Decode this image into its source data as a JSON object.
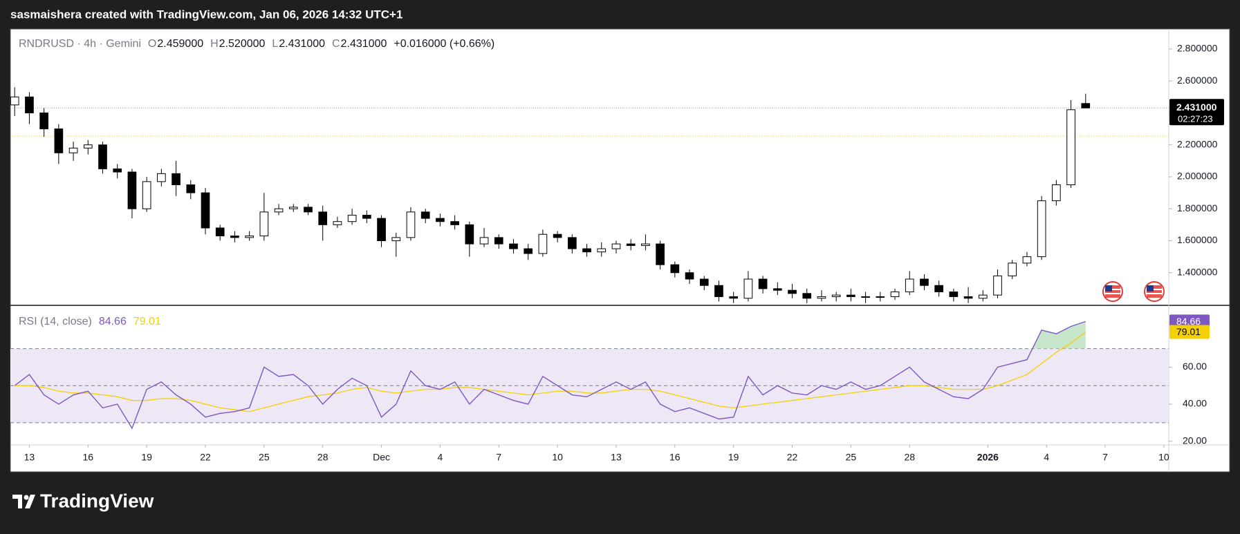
{
  "header": {
    "attribution": "sasmaishera created with TradingView.com, Jan 06, 2026 14:32 UTC+1"
  },
  "footer": {
    "brand": "TradingView"
  },
  "chart_data": {
    "type": "candlestick",
    "legend": {
      "symbol": "RNDRUSD · 4h · Gemini",
      "items": [
        {
          "key": "O",
          "value": "2.459000"
        },
        {
          "key": "H",
          "value": "2.520000"
        },
        {
          "key": "L",
          "value": "2.431000"
        },
        {
          "key": "C",
          "value": "2.431000"
        }
      ],
      "change": "+0.016000 (+0.66%)"
    },
    "x": [
      -0.75,
      0,
      0.75,
      1.5,
      2.25,
      3,
      3.75,
      4.5,
      5.25,
      6,
      6.75,
      7.5,
      8.25,
      9,
      9.75,
      10.5,
      11.25,
      12,
      12.75,
      13.5,
      14.25,
      15,
      15.75,
      16.5,
      17.25,
      18,
      18.75,
      19.5,
      20.25,
      21,
      21.75,
      22.5,
      23.25,
      24,
      24.75,
      25.5,
      26.25,
      27,
      27.75,
      28.5,
      29.25,
      30,
      30.75,
      31.5,
      32.25,
      33,
      33.75,
      34.5,
      35.25,
      36,
      36.75,
      37.5,
      38.25,
      39,
      39.75,
      40.5,
      41.25,
      42,
      42.75,
      43.5,
      44.25,
      45,
      45.75,
      46.5,
      47.25,
      48,
      48.75,
      49.5,
      50.25,
      51,
      51.75,
      52.5,
      53.25,
      54
    ],
    "open": [
      2.45,
      2.5,
      2.4,
      2.3,
      2.15,
      2.18,
      2.2,
      2.05,
      2.03,
      1.8,
      1.97,
      2.02,
      1.95,
      1.9,
      1.68,
      1.63,
      1.62,
      1.63,
      1.78,
      1.8,
      1.81,
      1.78,
      1.7,
      1.72,
      1.76,
      1.74,
      1.6,
      1.62,
      1.78,
      1.74,
      1.72,
      1.7,
      1.58,
      1.62,
      1.58,
      1.55,
      1.52,
      1.64,
      1.62,
      1.55,
      1.53,
      1.55,
      1.58,
      1.57,
      1.58,
      1.45,
      1.4,
      1.36,
      1.32,
      1.25,
      1.24,
      1.36,
      1.3,
      1.29,
      1.27,
      1.24,
      1.25,
      1.26,
      1.25,
      1.25,
      1.25,
      1.28,
      1.36,
      1.32,
      1.28,
      1.25,
      1.24,
      1.26,
      1.38,
      1.46,
      1.5,
      1.85,
      1.95,
      2.459
    ],
    "high": [
      2.56,
      2.53,
      2.43,
      2.33,
      2.22,
      2.23,
      2.22,
      2.08,
      2.05,
      2.0,
      2.05,
      2.1,
      1.98,
      1.93,
      1.7,
      1.66,
      1.66,
      1.9,
      1.83,
      1.83,
      1.83,
      1.82,
      1.75,
      1.8,
      1.79,
      1.76,
      1.65,
      1.81,
      1.8,
      1.77,
      1.76,
      1.72,
      1.68,
      1.64,
      1.61,
      1.58,
      1.67,
      1.66,
      1.64,
      1.58,
      1.59,
      1.6,
      1.61,
      1.64,
      1.6,
      1.47,
      1.42,
      1.38,
      1.35,
      1.28,
      1.41,
      1.38,
      1.34,
      1.33,
      1.3,
      1.29,
      1.28,
      1.3,
      1.28,
      1.28,
      1.3,
      1.41,
      1.39,
      1.35,
      1.3,
      1.31,
      1.29,
      1.42,
      1.48,
      1.53,
      1.88,
      1.98,
      2.48,
      2.52
    ],
    "low": [
      2.38,
      2.33,
      2.25,
      2.08,
      2.1,
      2.14,
      2.02,
      1.99,
      1.74,
      1.78,
      1.94,
      1.88,
      1.86,
      1.64,
      1.6,
      1.59,
      1.6,
      1.6,
      1.76,
      1.78,
      1.76,
      1.6,
      1.68,
      1.7,
      1.71,
      1.56,
      1.5,
      1.6,
      1.71,
      1.69,
      1.67,
      1.5,
      1.56,
      1.55,
      1.52,
      1.48,
      1.5,
      1.59,
      1.52,
      1.5,
      1.5,
      1.52,
      1.54,
      1.54,
      1.42,
      1.37,
      1.33,
      1.29,
      1.22,
      1.21,
      1.22,
      1.27,
      1.26,
      1.24,
      1.21,
      1.22,
      1.22,
      1.22,
      1.21,
      1.22,
      1.23,
      1.26,
      1.29,
      1.25,
      1.22,
      1.21,
      1.22,
      1.24,
      1.36,
      1.44,
      1.48,
      1.82,
      1.93,
      2.431
    ],
    "close": [
      2.5,
      2.4,
      2.3,
      2.15,
      2.18,
      2.2,
      2.05,
      2.03,
      1.8,
      1.97,
      2.02,
      1.95,
      1.9,
      1.68,
      1.63,
      1.62,
      1.63,
      1.78,
      1.8,
      1.81,
      1.78,
      1.7,
      1.72,
      1.76,
      1.74,
      1.6,
      1.62,
      1.78,
      1.74,
      1.72,
      1.7,
      1.58,
      1.62,
      1.58,
      1.55,
      1.52,
      1.64,
      1.62,
      1.55,
      1.53,
      1.55,
      1.58,
      1.57,
      1.58,
      1.45,
      1.4,
      1.36,
      1.32,
      1.25,
      1.24,
      1.36,
      1.3,
      1.29,
      1.27,
      1.24,
      1.25,
      1.26,
      1.25,
      1.25,
      1.25,
      1.28,
      1.36,
      1.32,
      1.28,
      1.25,
      1.24,
      1.26,
      1.38,
      1.46,
      1.5,
      1.85,
      1.95,
      2.42,
      2.431
    ],
    "up_color": "#ffffff",
    "down_color": "#000000",
    "wick_color": "#000000",
    "xlim": [
      -0.97,
      58.25
    ],
    "xticks": [
      {
        "value": 0,
        "label": "13"
      },
      {
        "value": 3,
        "label": "16"
      },
      {
        "value": 6,
        "label": "19"
      },
      {
        "value": 9,
        "label": "22"
      },
      {
        "value": 12,
        "label": "25"
      },
      {
        "value": 15,
        "label": "28"
      },
      {
        "value": 18,
        "label": "Dec"
      },
      {
        "value": 21,
        "label": "4"
      },
      {
        "value": 24,
        "label": "7"
      },
      {
        "value": 27,
        "label": "10"
      },
      {
        "value": 30,
        "label": "13"
      },
      {
        "value": 33,
        "label": "16"
      },
      {
        "value": 36,
        "label": "19"
      },
      {
        "value": 39,
        "label": "22"
      },
      {
        "value": 42,
        "label": "25"
      },
      {
        "value": 45,
        "label": "28"
      },
      {
        "value": 49,
        "label": "2026",
        "bold": true
      },
      {
        "value": 52,
        "label": "4"
      },
      {
        "value": 55,
        "label": "7"
      },
      {
        "value": 58,
        "label": "10"
      }
    ],
    "ylim": [
      1.2,
      2.925
    ],
    "yticks": [
      {
        "value": 1.4,
        "label": "1.400000"
      },
      {
        "value": 1.6,
        "label": "1.600000"
      },
      {
        "value": 1.8,
        "label": "1.800000"
      },
      {
        "value": 2.0,
        "label": "2.000000"
      },
      {
        "value": 2.2,
        "label": "2.200000"
      },
      {
        "value": 2.4,
        "label": "2.400000"
      },
      {
        "value": 2.6,
        "label": "2.600000"
      },
      {
        "value": 2.8,
        "label": "2.800000"
      }
    ],
    "price_tag": {
      "value": 2.431,
      "label": "2.431000",
      "countdown": "02:27:23"
    },
    "reference_line": {
      "value": 2.255,
      "color": "#f5d000"
    },
    "rsi": {
      "title": "RSI (14, close)",
      "color": "#7e57c2",
      "ma_color": "#f5d000",
      "values": [
        50,
        56,
        45,
        40,
        45,
        47,
        38,
        40,
        27,
        48,
        52,
        45,
        40,
        33,
        35,
        36,
        38,
        60,
        55,
        56,
        50,
        40,
        48,
        54,
        50,
        33,
        40,
        58,
        50,
        48,
        52,
        40,
        48,
        45,
        42,
        40,
        55,
        50,
        45,
        44,
        48,
        52,
        48,
        52,
        40,
        36,
        38,
        35,
        32,
        33,
        55,
        45,
        50,
        46,
        45,
        50,
        48,
        52,
        48,
        50,
        55,
        60,
        52,
        48,
        44,
        43,
        48,
        60,
        62,
        64,
        80,
        78,
        82,
        84.66
      ],
      "ma_values": [
        50,
        50,
        49,
        47,
        46,
        46,
        45,
        44,
        42,
        42,
        43,
        43,
        42,
        40,
        38,
        37,
        36,
        38,
        40,
        42,
        44,
        45,
        46,
        48,
        49,
        47,
        46,
        47,
        48,
        48,
        49,
        49,
        48,
        47,
        46,
        45,
        46,
        47,
        47,
        46,
        46,
        47,
        48,
        48,
        47,
        45,
        43,
        41,
        39,
        38,
        39,
        40,
        41,
        42,
        43,
        44,
        45,
        46,
        47,
        48,
        49,
        50,
        50,
        49,
        48,
        48,
        48,
        50,
        53,
        56,
        62,
        68,
        73,
        79.01
      ],
      "ylim": [
        18,
        93
      ],
      "yticks": [
        {
          "value": 20,
          "label": "20.00"
        },
        {
          "value": 40,
          "label": "40.00"
        },
        {
          "value": 60,
          "label": "60.00"
        }
      ],
      "bands": [
        30,
        50,
        70
      ],
      "band_fill": "#ede7f6",
      "overbought_fill": "#c8e6c9"
    }
  }
}
